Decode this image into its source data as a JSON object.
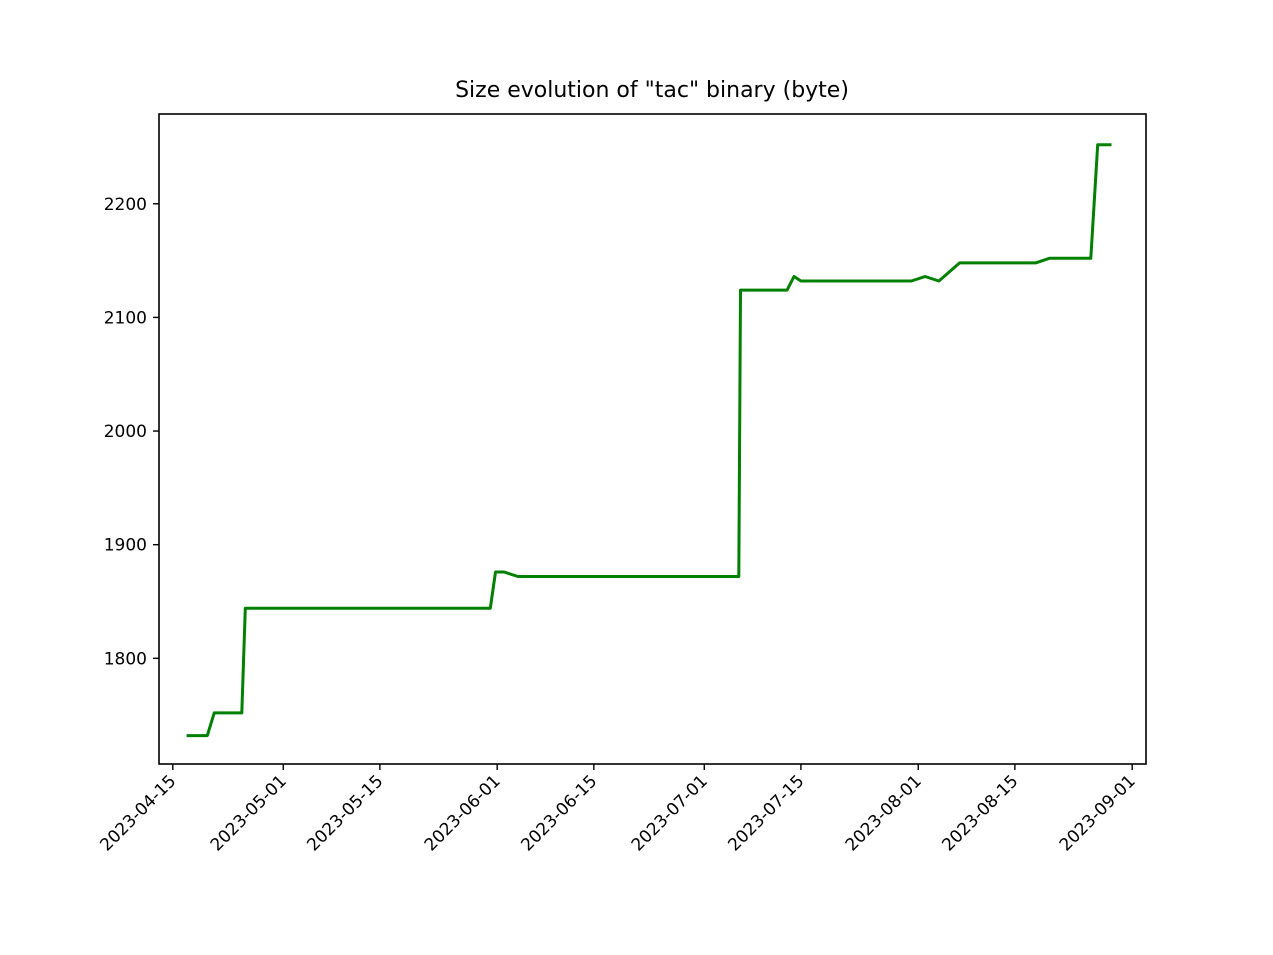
{
  "chart_data": {
    "type": "line",
    "title": "Size evolution of \"tac\" binary (byte)",
    "xlabel": "",
    "ylabel": "",
    "x_axis_type": "date",
    "xlim": [
      "2023-04-13",
      "2023-09-03"
    ],
    "ylim": [
      1707,
      2279
    ],
    "x_ticks": [
      "2023-04-15",
      "2023-05-01",
      "2023-05-15",
      "2023-06-01",
      "2023-06-15",
      "2023-07-01",
      "2023-07-15",
      "2023-08-01",
      "2023-08-15",
      "2023-09-01"
    ],
    "y_ticks": [
      1800,
      1900,
      2000,
      2100,
      2200
    ],
    "grid": false,
    "legend": "none",
    "series": [
      {
        "color": "#008000",
        "points": [
          {
            "x": "2023-04-17",
            "y": 1732
          },
          {
            "x": "2023-04-20",
            "y": 1732
          },
          {
            "x": "2023-04-21",
            "y": 1752
          },
          {
            "x": "2023-04-25",
            "y": 1752
          },
          {
            "x": "2023-04-25T12:00",
            "y": 1844
          },
          {
            "x": "2023-05-31",
            "y": 1844
          },
          {
            "x": "2023-05-31T18:00",
            "y": 1876
          },
          {
            "x": "2023-06-02",
            "y": 1876
          },
          {
            "x": "2023-06-04",
            "y": 1872
          },
          {
            "x": "2023-07-06",
            "y": 1872
          },
          {
            "x": "2023-07-06T06:00",
            "y": 2124
          },
          {
            "x": "2023-07-13",
            "y": 2124
          },
          {
            "x": "2023-07-14",
            "y": 2136
          },
          {
            "x": "2023-07-15",
            "y": 2132
          },
          {
            "x": "2023-07-31",
            "y": 2132
          },
          {
            "x": "2023-08-02",
            "y": 2136
          },
          {
            "x": "2023-08-04",
            "y": 2132
          },
          {
            "x": "2023-08-07",
            "y": 2148
          },
          {
            "x": "2023-08-18",
            "y": 2148
          },
          {
            "x": "2023-08-20",
            "y": 2152
          },
          {
            "x": "2023-08-26",
            "y": 2152
          },
          {
            "x": "2023-08-27",
            "y": 2252
          },
          {
            "x": "2023-08-29",
            "y": 2252
          }
        ]
      }
    ]
  }
}
